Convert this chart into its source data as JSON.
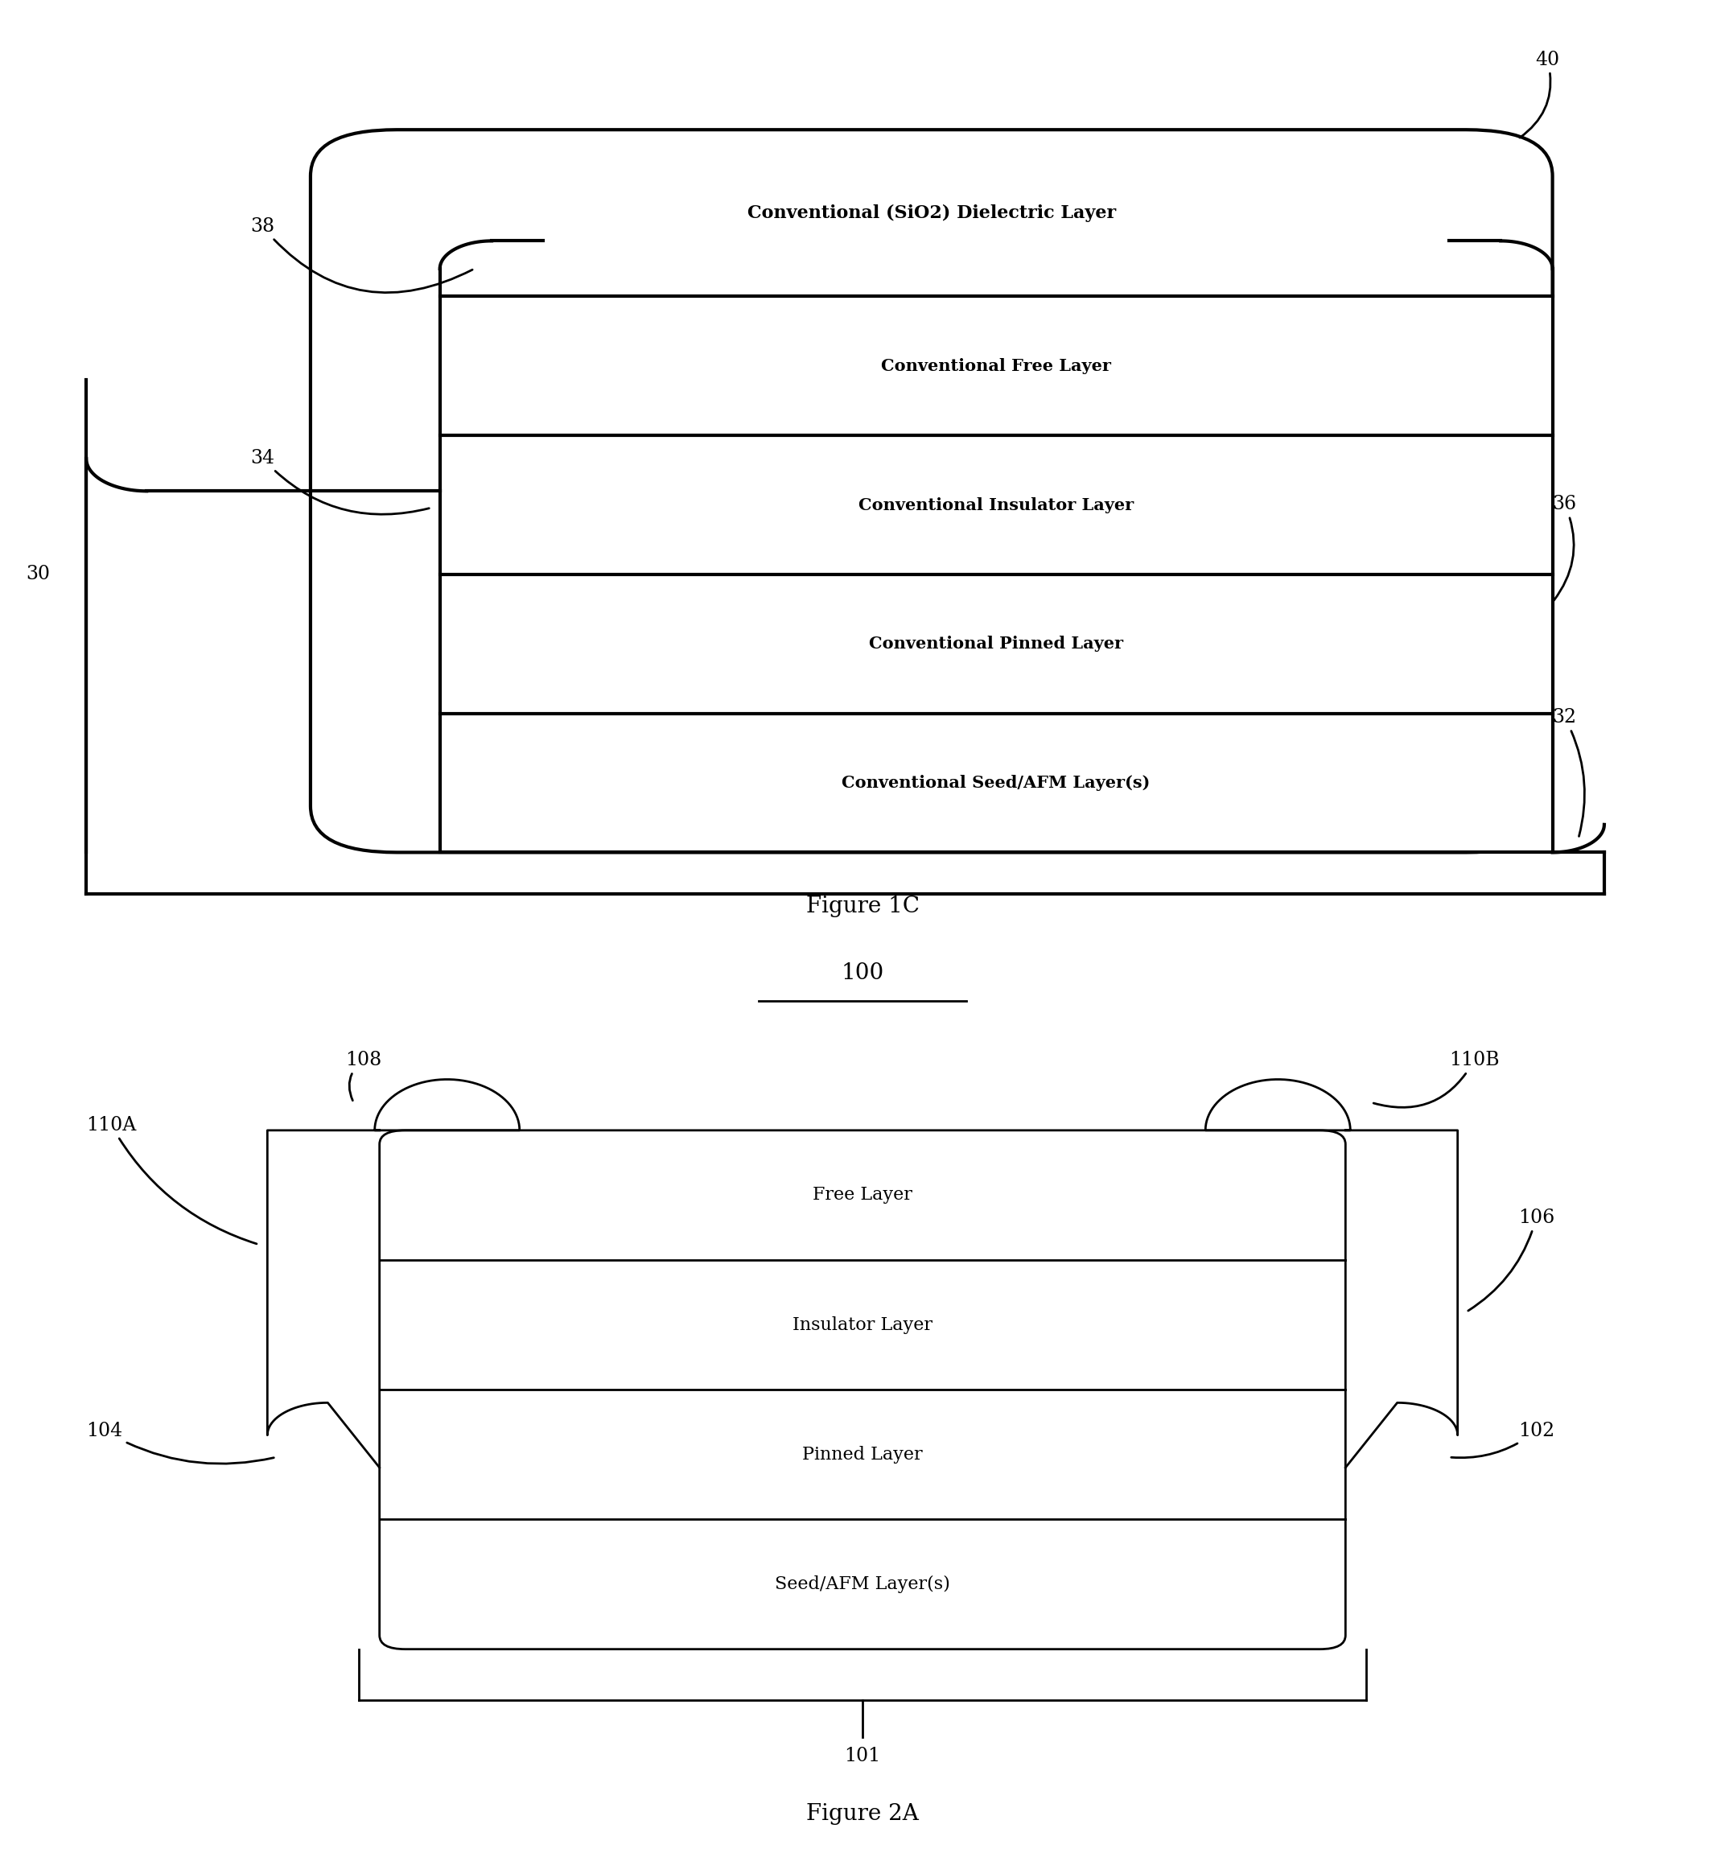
{
  "bg_color": "#ffffff",
  "fig1c": {
    "title": "Figure 1C",
    "layer_labels_inner": [
      "Conventional Free Layer",
      "Conventional Insulator Layer",
      "Conventional Pinned Layer",
      "Conventional Seed/AFM Layer(s)"
    ],
    "dielectric_label": "Conventional (SiO2) Dielectric Layer"
  },
  "fig2a": {
    "title": "Figure 2A",
    "title_ref": "100",
    "layer_labels": [
      "Free Layer",
      "Insulator Layer",
      "Pinned Layer",
      "Seed/AFM Layer(s)"
    ]
  }
}
